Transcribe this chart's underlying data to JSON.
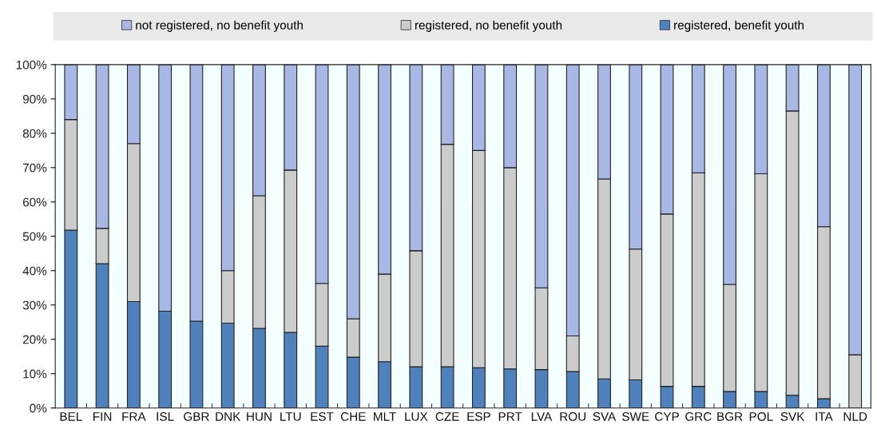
{
  "chart_data": {
    "type": "bar",
    "stacked": true,
    "legend": "top",
    "grid": false,
    "categories": [
      "BEL",
      "FIN",
      "FRA",
      "ISL",
      "GBR",
      "DNK",
      "HUN",
      "LTU",
      "EST",
      "CHE",
      "MLT",
      "LUX",
      "CZE",
      "ESP",
      "PRT",
      "LVA",
      "ROU",
      "SVA",
      "SWE",
      "CYP",
      "GRC",
      "BGR",
      "POL",
      "SVK",
      "ITA",
      "NLD"
    ],
    "series": [
      {
        "name": "registered, benefit youth",
        "color": "#4f81bd",
        "values": [
          51.8,
          42,
          31,
          28.2,
          25.3,
          24.7,
          23.2,
          22,
          18,
          14.8,
          13.5,
          12,
          12,
          11.7,
          11.4,
          11.2,
          10.6,
          8.5,
          8.2,
          6.3,
          6.3,
          4.8,
          4.8,
          3.7,
          2.7,
          null
        ]
      },
      {
        "name": "registered, no benefit youth",
        "color": "#cccccc",
        "values": [
          32.2,
          10.3,
          46,
          null,
          null,
          15.3,
          38.6,
          47.3,
          18.3,
          11.2,
          25.5,
          33.8,
          64.8,
          63.3,
          58.6,
          23.8,
          10.4,
          58.2,
          38.1,
          50.2,
          62.2,
          31.2,
          63.4,
          82.8,
          50.1,
          15.5
        ]
      },
      {
        "name": "not registered, no benefit youth",
        "color": "#a6b8e3",
        "values": [
          16,
          47.7,
          23,
          71.8,
          74.7,
          60,
          38.2,
          30.7,
          63.7,
          74,
          61,
          54.2,
          23.2,
          25,
          30,
          65,
          79,
          33.3,
          53.7,
          43.5,
          31.5,
          64,
          31.8,
          13.5,
          47.2,
          84.5
        ]
      }
    ],
    "ylim": [
      0,
      100
    ],
    "yticks": [
      {
        "value": 0,
        "label": "0%"
      },
      {
        "value": 10,
        "label": "10%"
      },
      {
        "value": 20,
        "label": "20%"
      },
      {
        "value": 30,
        "label": "30%"
      },
      {
        "value": 40,
        "label": "40%"
      },
      {
        "value": 50,
        "label": "50%"
      },
      {
        "value": 60,
        "label": "60%"
      },
      {
        "value": 70,
        "label": "70%"
      },
      {
        "value": 80,
        "label": "80%"
      },
      {
        "value": 90,
        "label": "90%"
      },
      {
        "value": 100,
        "label": "100%"
      }
    ]
  }
}
